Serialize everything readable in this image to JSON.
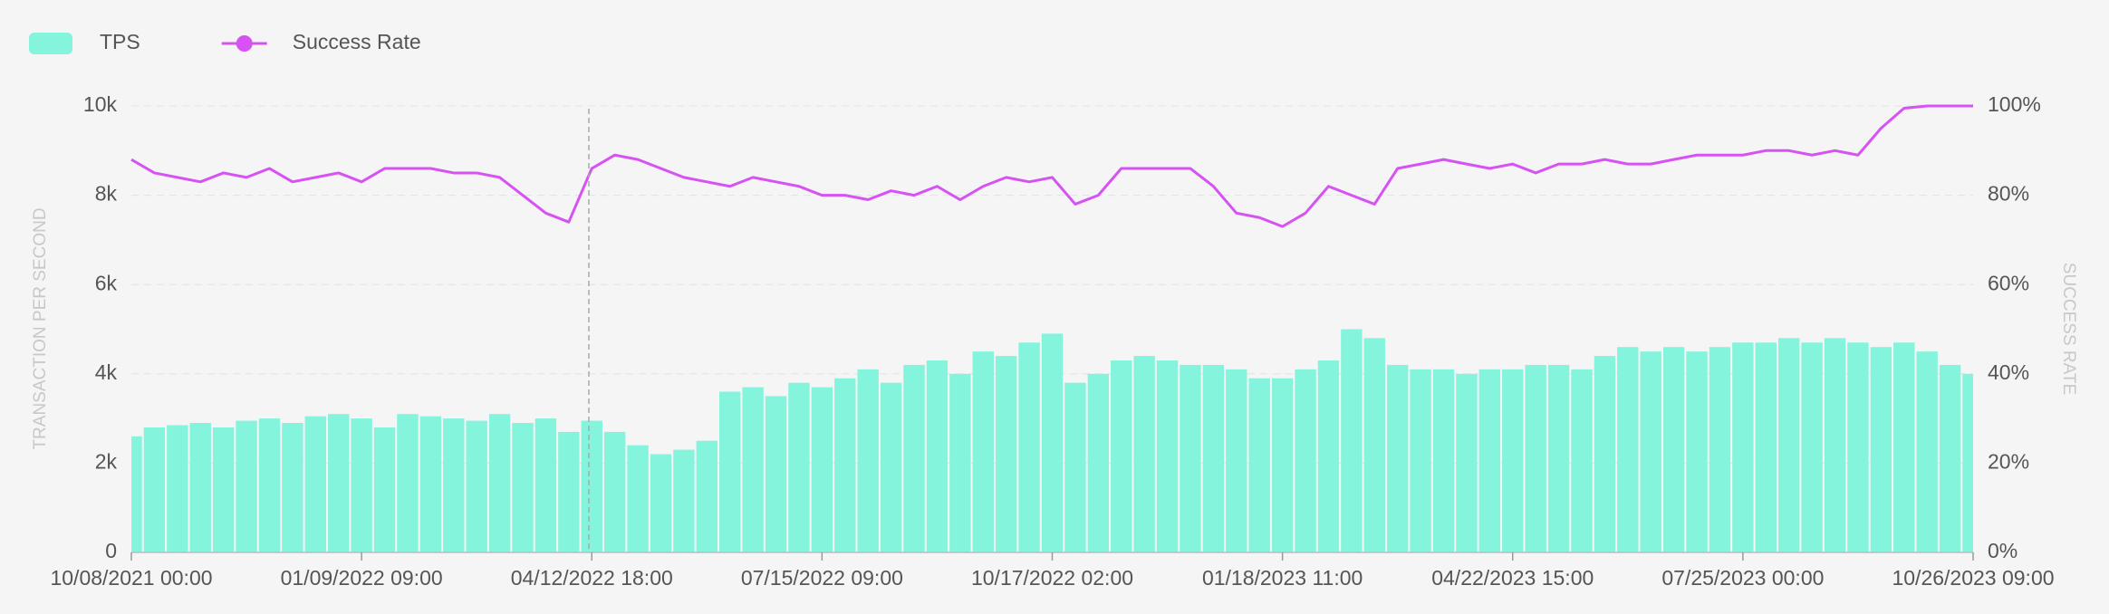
{
  "chart_data": {
    "type": "combo",
    "y_label": "TRANSACTION PER SECOND",
    "y2_label": "SUCCESS RATE",
    "categories": [
      "10/08/2021 00:00",
      null,
      null,
      null,
      null,
      null,
      null,
      null,
      null,
      null,
      "01/09/2022 09:00",
      null,
      null,
      null,
      null,
      null,
      null,
      null,
      null,
      null,
      "04/12/2022 18:00",
      null,
      null,
      null,
      null,
      null,
      null,
      null,
      null,
      null,
      "07/15/2022 09:00",
      null,
      null,
      null,
      null,
      null,
      null,
      null,
      null,
      null,
      "10/17/2022 02:00",
      null,
      null,
      null,
      null,
      null,
      null,
      null,
      null,
      null,
      "01/18/2023 11:00",
      null,
      null,
      null,
      null,
      null,
      null,
      null,
      null,
      null,
      "04/22/2023 15:00",
      null,
      null,
      null,
      null,
      null,
      null,
      null,
      null,
      null,
      "07/25/2023 00:00",
      null,
      null,
      null,
      null,
      null,
      null,
      null,
      null,
      null,
      "10/26/2023 09:00"
    ],
    "series": [
      {
        "name": "TPS",
        "type": "bar",
        "color": "#84f4dc",
        "axis": "y",
        "values": [
          2600,
          2800,
          2850,
          2900,
          2800,
          2950,
          3000,
          2900,
          3050,
          3100,
          3000,
          2800,
          3100,
          3050,
          3000,
          2950,
          3100,
          2900,
          3000,
          2700,
          2950,
          2700,
          2400,
          2200,
          2300,
          2500,
          3600,
          3700,
          3500,
          3800,
          3700,
          3900,
          4100,
          3800,
          4200,
          4300,
          4000,
          4500,
          4400,
          4700,
          4900,
          3800,
          4000,
          4300,
          4400,
          4300,
          4200,
          4200,
          4100,
          3900,
          3900,
          4100,
          4300,
          5000,
          4800,
          4200,
          4100,
          4100,
          4000,
          4100,
          4100,
          4200,
          4200,
          4100,
          4400,
          4600,
          4500,
          4600,
          4500,
          4600,
          4700,
          4700,
          4800,
          4700,
          4800,
          4700,
          4600,
          4700,
          4500,
          4200,
          4000
        ]
      },
      {
        "name": "Success Rate",
        "type": "line",
        "color": "#d752f3",
        "axis": "y2",
        "values": [
          88,
          85,
          84,
          83,
          85,
          84,
          86,
          83,
          84,
          85,
          83,
          86,
          86,
          86,
          85,
          85,
          84,
          80,
          76,
          74,
          86,
          89,
          88,
          86,
          84,
          83,
          82,
          84,
          83,
          82,
          80,
          80,
          79,
          81,
          80,
          82,
          79,
          82,
          84,
          83,
          84,
          78,
          80,
          86,
          86,
          86,
          86,
          82,
          76,
          75,
          73,
          76,
          82,
          80,
          78,
          86,
          87,
          88,
          87,
          86,
          87,
          85,
          87,
          87,
          88,
          87,
          87,
          88,
          89,
          89,
          89,
          90,
          90,
          89,
          90,
          89,
          95,
          99.5,
          100,
          100,
          100
        ]
      }
    ],
    "ylim": [
      0,
      10000
    ],
    "yticks": [
      0,
      {
        "value": 2000,
        "label": "2k"
      },
      {
        "value": 4000,
        "label": "4k"
      },
      {
        "value": 6000,
        "label": "6k"
      },
      {
        "value": 8000,
        "label": "8k"
      },
      {
        "value": 10000,
        "label": "10k"
      }
    ],
    "y2lim": [
      0,
      100
    ],
    "y2ticks": [
      {
        "value": 0,
        "label": "0%"
      },
      {
        "value": 20,
        "label": "20%"
      },
      {
        "value": 40,
        "label": "40%"
      },
      {
        "value": 60,
        "label": "60%"
      },
      {
        "value": 80,
        "label": "80%"
      },
      {
        "value": 100,
        "label": "100%"
      }
    ],
    "grid": true,
    "legend": "top-left"
  }
}
